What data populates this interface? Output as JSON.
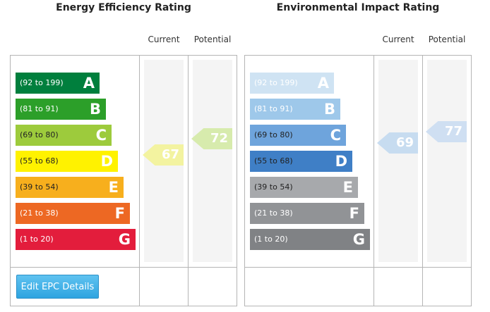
{
  "chart_data": [
    {
      "type": "bar",
      "title": "Energy Efficiency Rating",
      "columns": {
        "current": "Current",
        "potential": "Potential"
      },
      "bands": [
        {
          "range": "(92 to 199)",
          "letter": "A",
          "color": "#007f3d",
          "text_color": "#ffffff",
          "min": 92,
          "max": 199
        },
        {
          "range": "(81 to 91)",
          "letter": "B",
          "color": "#2c9f29",
          "text_color": "#ffffff",
          "min": 81,
          "max": 91
        },
        {
          "range": "(69 to 80)",
          "letter": "C",
          "color": "#9dcb3c",
          "text_color": "#222222",
          "min": 69,
          "max": 80
        },
        {
          "range": "(55 to 68)",
          "letter": "D",
          "color": "#fff200",
          "text_color": "#222222",
          "min": 55,
          "max": 68
        },
        {
          "range": "(39 to 54)",
          "letter": "E",
          "color": "#f7af1d",
          "text_color": "#222222",
          "min": 39,
          "max": 54
        },
        {
          "range": "(21 to 38)",
          "letter": "F",
          "color": "#ed6823",
          "text_color": "#ffffff",
          "min": 21,
          "max": 38
        },
        {
          "range": "(1 to 20)",
          "letter": "G",
          "color": "#e31d3c",
          "text_color": "#ffffff",
          "min": 1,
          "max": 20
        }
      ],
      "current": {
        "value": 67,
        "color": "#f3f3a0"
      },
      "potential": {
        "value": 72,
        "color": "#d7ebad"
      }
    },
    {
      "type": "bar",
      "title": "Environmental Impact Rating",
      "columns": {
        "current": "Current",
        "potential": "Potential"
      },
      "bands": [
        {
          "range": "(92 to 199)",
          "letter": "A",
          "color": "#cfe3f3",
          "text_color": "#ffffff",
          "min": 92,
          "max": 199
        },
        {
          "range": "(81 to 91)",
          "letter": "B",
          "color": "#9ec8ea",
          "text_color": "#ffffff",
          "min": 81,
          "max": 91
        },
        {
          "range": "(69 to 80)",
          "letter": "C",
          "color": "#6ea4dc",
          "text_color": "#222222",
          "min": 69,
          "max": 80
        },
        {
          "range": "(55 to 68)",
          "letter": "D",
          "color": "#3f7fc6",
          "text_color": "#222222",
          "min": 55,
          "max": 68
        },
        {
          "range": "(39 to 54)",
          "letter": "E",
          "color": "#a7a9ac",
          "text_color": "#222222",
          "min": 39,
          "max": 54
        },
        {
          "range": "(21 to 38)",
          "letter": "F",
          "color": "#919396",
          "text_color": "#ffffff",
          "min": 21,
          "max": 38
        },
        {
          "range": "(1 to 20)",
          "letter": "G",
          "color": "#808285",
          "text_color": "#ffffff",
          "min": 1,
          "max": 20
        }
      ],
      "current": {
        "value": 69,
        "color": "#c7dcf0"
      },
      "potential": {
        "value": 77,
        "color": "#cfdff2"
      }
    }
  ],
  "edit_button": {
    "label": "Edit EPC Details",
    "color": "#3aaee6"
  }
}
